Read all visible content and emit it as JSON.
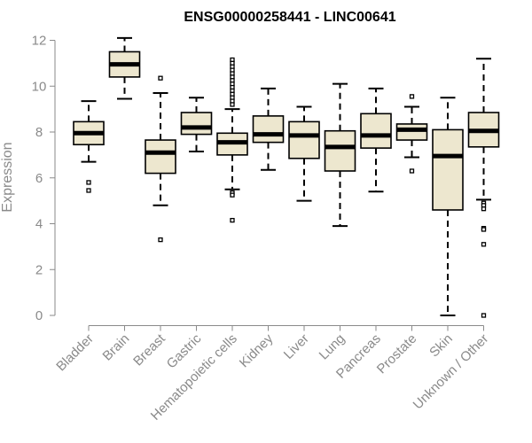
{
  "chart_data": {
    "type": "box",
    "title": "ENSG00000258441 - LINC00641",
    "xlabel": "",
    "ylabel": "Expression",
    "ylim": [
      0,
      12
    ],
    "yticks": [
      0,
      2,
      4,
      6,
      8,
      10,
      12
    ],
    "box_fill": "#ede7cf",
    "categories": [
      "Bladder",
      "Brain",
      "Breast",
      "Gastric",
      "Hematopoietic cells",
      "Kidney",
      "Liver",
      "Lung",
      "Pancreas",
      "Prostate",
      "Skin",
      "Unknown / Other"
    ],
    "boxes": [
      {
        "whisker_low": 6.7,
        "q1": 7.45,
        "median": 7.95,
        "q3": 8.45,
        "whisker_high": 9.35,
        "outliers": [
          5.8,
          5.45
        ]
      },
      {
        "whisker_low": 9.45,
        "q1": 10.4,
        "median": 10.95,
        "q3": 11.5,
        "whisker_high": 12.1,
        "outliers": []
      },
      {
        "whisker_low": 4.8,
        "q1": 6.2,
        "median": 7.1,
        "q3": 7.65,
        "whisker_high": 9.7,
        "outliers": [
          10.35,
          3.3
        ]
      },
      {
        "whisker_low": 7.15,
        "q1": 7.9,
        "median": 8.2,
        "q3": 8.85,
        "whisker_high": 9.5,
        "outliers": []
      },
      {
        "whisker_low": 5.5,
        "q1": 7.0,
        "median": 7.55,
        "q3": 7.95,
        "whisker_high": 9.0,
        "outliers": [
          11.15,
          11.0,
          10.85,
          10.7,
          10.55,
          10.4,
          10.25,
          10.1,
          9.95,
          9.8,
          9.65,
          9.5,
          9.35,
          9.2,
          5.35,
          5.25,
          4.15
        ]
      },
      {
        "whisker_low": 6.35,
        "q1": 7.55,
        "median": 7.9,
        "q3": 8.7,
        "whisker_high": 9.9,
        "outliers": []
      },
      {
        "whisker_low": 5.0,
        "q1": 6.85,
        "median": 7.85,
        "q3": 8.45,
        "whisker_high": 9.1,
        "outliers": []
      },
      {
        "whisker_low": 3.9,
        "q1": 6.3,
        "median": 7.35,
        "q3": 8.05,
        "whisker_high": 10.1,
        "outliers": []
      },
      {
        "whisker_low": 5.4,
        "q1": 7.3,
        "median": 7.85,
        "q3": 8.8,
        "whisker_high": 9.9,
        "outliers": []
      },
      {
        "whisker_low": 6.9,
        "q1": 7.65,
        "median": 8.1,
        "q3": 8.35,
        "whisker_high": 9.1,
        "outliers": [
          9.55,
          6.3
        ]
      },
      {
        "whisker_low": 0.0,
        "q1": 4.6,
        "median": 6.95,
        "q3": 8.1,
        "whisker_high": 9.5,
        "outliers": []
      },
      {
        "whisker_low": 5.05,
        "q1": 7.35,
        "median": 8.05,
        "q3": 8.85,
        "whisker_high": 11.2,
        "outliers": [
          4.9,
          4.8,
          4.65,
          3.8,
          3.75,
          3.1,
          0.0
        ]
      }
    ]
  }
}
